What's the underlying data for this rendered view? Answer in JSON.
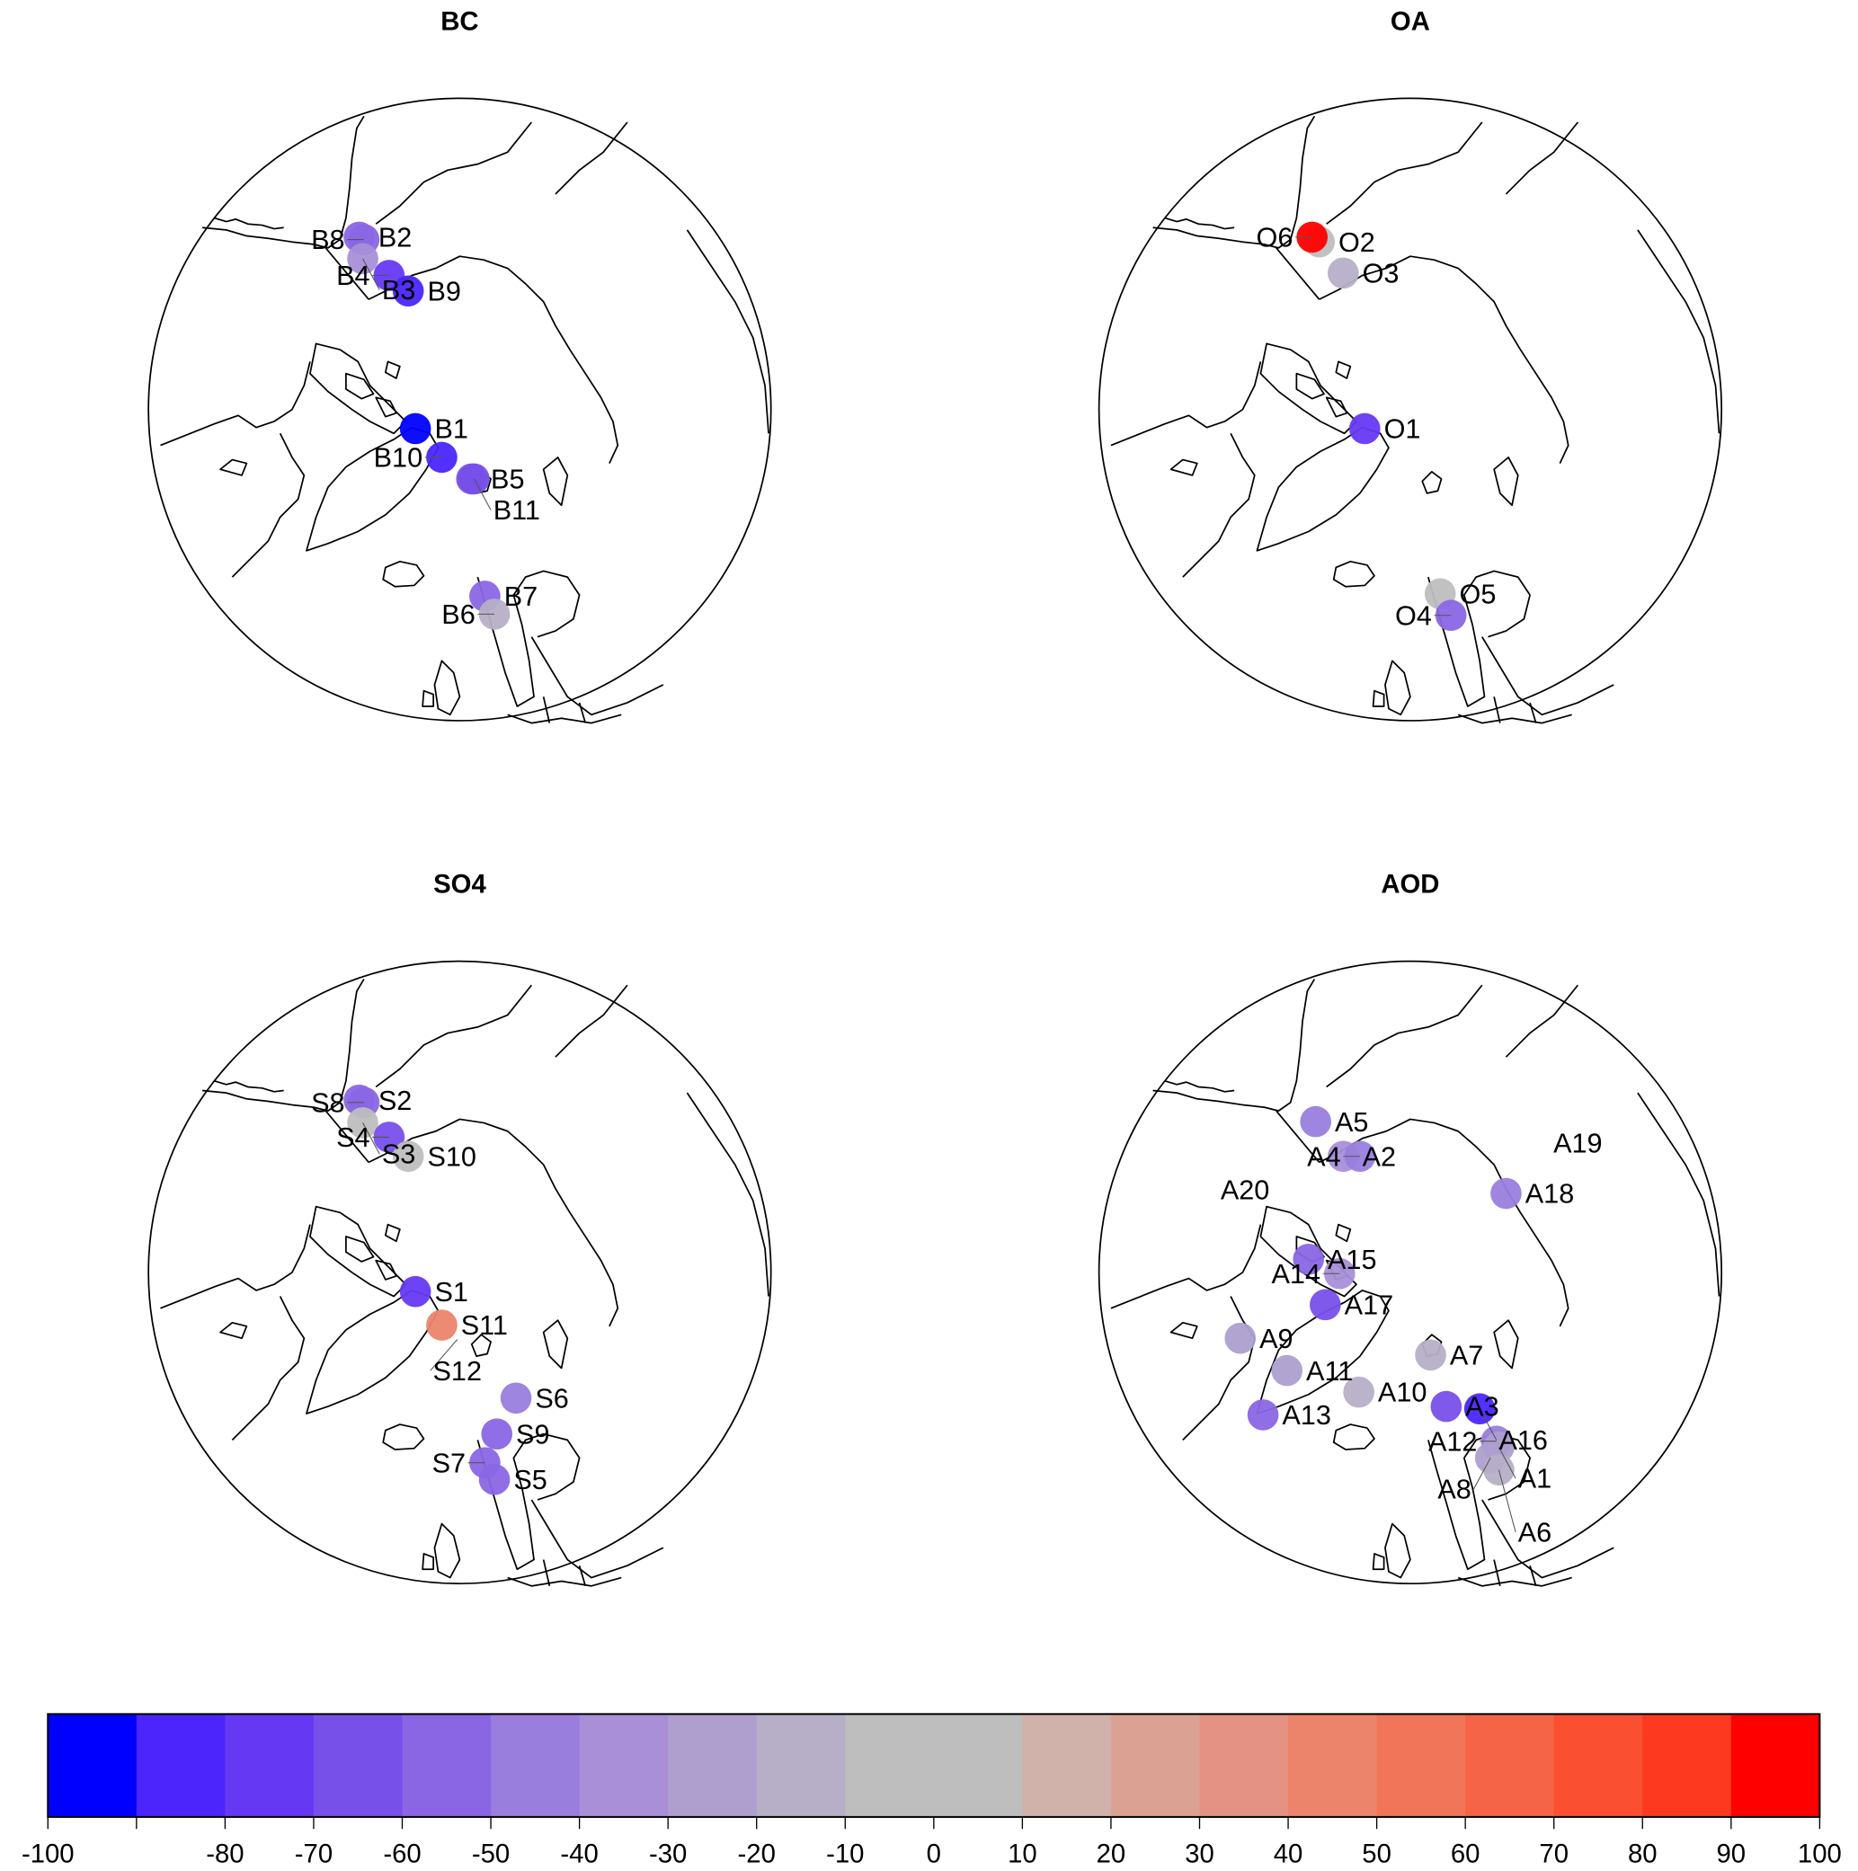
{
  "chart_data": [
    {
      "type": "scatter",
      "title": "BC",
      "sites": [
        {
          "label": "B2",
          "value": -60
        },
        {
          "label": "B8",
          "value": -60
        },
        {
          "label": "B3",
          "value": -35
        },
        {
          "label": "B4",
          "value": -75
        },
        {
          "label": "B9",
          "value": -85
        },
        {
          "label": "B1",
          "value": -95
        },
        {
          "label": "B10",
          "value": -85
        },
        {
          "label": "B5",
          "value": -70
        },
        {
          "label": "B11",
          "value": -70
        },
        {
          "label": "B7",
          "value": -55
        },
        {
          "label": "B6",
          "value": -15
        }
      ]
    },
    {
      "type": "scatter",
      "title": "OA",
      "sites": [
        {
          "label": "O2",
          "value": 0
        },
        {
          "label": "O6",
          "value": 95
        },
        {
          "label": "O3",
          "value": -15
        },
        {
          "label": "O1",
          "value": -75
        },
        {
          "label": "O5",
          "value": 0
        },
        {
          "label": "O4",
          "value": -60
        }
      ]
    },
    {
      "type": "scatter",
      "title": "SO4",
      "sites": [
        {
          "label": "S2",
          "value": -55
        },
        {
          "label": "S8",
          "value": -55
        },
        {
          "label": "S3",
          "value": 0
        },
        {
          "label": "S4",
          "value": -65
        },
        {
          "label": "S10",
          "value": 0
        },
        {
          "label": "S1",
          "value": -75
        },
        {
          "label": "S11",
          "value": 45
        },
        {
          "label": "S12",
          "value": null
        },
        {
          "label": "S6",
          "value": -45
        },
        {
          "label": "S9",
          "value": -60
        },
        {
          "label": "S7",
          "value": -55
        },
        {
          "label": "S5",
          "value": -60
        }
      ]
    },
    {
      "type": "scatter",
      "title": "AOD",
      "sites": [
        {
          "label": "A5",
          "value": -45
        },
        {
          "label": "A2",
          "value": -35
        },
        {
          "label": "A4",
          "value": -50
        },
        {
          "label": "A20",
          "value": null
        },
        {
          "label": "A19",
          "value": null
        },
        {
          "label": "A18",
          "value": -50
        },
        {
          "label": "A15",
          "value": -60
        },
        {
          "label": "A14",
          "value": -40
        },
        {
          "label": "A17",
          "value": -65
        },
        {
          "label": "A9",
          "value": -30
        },
        {
          "label": "A11",
          "value": -30
        },
        {
          "label": "A10",
          "value": -20
        },
        {
          "label": "A13",
          "value": -55
        },
        {
          "label": "A7",
          "value": -20
        },
        {
          "label": "A3",
          "value": -65
        },
        {
          "label": "A16",
          "value": -85
        },
        {
          "label": "A12",
          "value": -45
        },
        {
          "label": "A1",
          "value": -30
        },
        {
          "label": "A8",
          "value": -25
        },
        {
          "label": "A6",
          "value": -20
        }
      ]
    }
  ],
  "colorbar": {
    "range": [
      -100,
      100
    ],
    "bin_width": 10,
    "colors": [
      "#0000ff",
      "#4b25fc",
      "#6539f4",
      "#7750ea",
      "#8a66e4",
      "#997ede",
      "#a88fd8",
      "#ae9fcf",
      "#b6afc7",
      "#bebebe",
      "#bebebe",
      "#d1b2ab",
      "#dba294",
      "#e39283",
      "#ec846b",
      "#f07559",
      "#f56446",
      "#fa4f30",
      "#fd3920",
      "#ff0000"
    ],
    "tick_labels": [
      "-100",
      "",
      "-80",
      "-70",
      "-60",
      "-50",
      "-40",
      "-30",
      "-20",
      "-10",
      "0",
      "10",
      "20",
      "30",
      "40",
      "50",
      "60",
      "70",
      "80",
      "90",
      "100"
    ]
  }
}
